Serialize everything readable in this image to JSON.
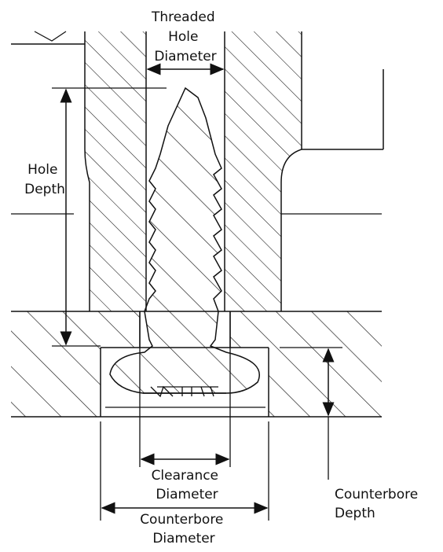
{
  "labels": {
    "threaded_hole_diameter": [
      "Threaded",
      "Hole",
      "Diameter"
    ],
    "hole_depth": [
      "Hole",
      "Depth"
    ],
    "clearance_diameter": [
      "Clearance",
      "Diameter"
    ],
    "counterbore_diameter": [
      "Counterbore",
      "Diameter"
    ],
    "counterbore_depth": [
      "Counterbore",
      "Depth"
    ]
  },
  "colors": {
    "line": "#111111",
    "background": "#ffffff"
  }
}
